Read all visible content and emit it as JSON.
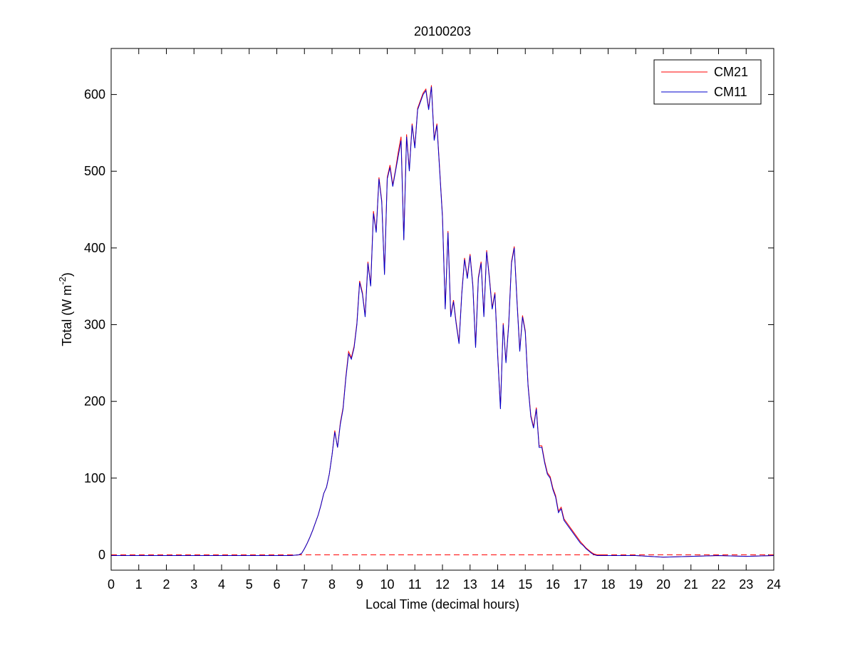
{
  "chart_data": {
    "type": "line",
    "title": "20100203",
    "xlabel": "Local Time (decimal hours)",
    "ylabel_parts": [
      "Total (W m",
      "-2",
      ")"
    ],
    "x": [
      0,
      1,
      2,
      3,
      4,
      5,
      6,
      6.5,
      6.8,
      6.9,
      7.0,
      7.1,
      7.2,
      7.3,
      7.4,
      7.5,
      7.6,
      7.7,
      7.8,
      7.9,
      8.0,
      8.1,
      8.2,
      8.3,
      8.4,
      8.5,
      8.6,
      8.7,
      8.8,
      8.9,
      9.0,
      9.1,
      9.2,
      9.3,
      9.4,
      9.5,
      9.6,
      9.7,
      9.8,
      9.9,
      10.0,
      10.1,
      10.2,
      10.3,
      10.4,
      10.5,
      10.6,
      10.7,
      10.8,
      10.9,
      11.0,
      11.1,
      11.2,
      11.3,
      11.4,
      11.5,
      11.6,
      11.7,
      11.8,
      11.9,
      12.0,
      12.1,
      12.2,
      12.3,
      12.4,
      12.5,
      12.6,
      12.7,
      12.8,
      12.9,
      13.0,
      13.1,
      13.2,
      13.3,
      13.4,
      13.5,
      13.6,
      13.7,
      13.8,
      13.9,
      14.0,
      14.1,
      14.2,
      14.3,
      14.4,
      14.5,
      14.6,
      14.7,
      14.8,
      14.9,
      15.0,
      15.1,
      15.2,
      15.3,
      15.4,
      15.5,
      15.6,
      15.7,
      15.8,
      15.9,
      16.0,
      16.1,
      16.2,
      16.3,
      16.4,
      16.5,
      16.6,
      16.7,
      16.8,
      16.9,
      17.0,
      17.1,
      17.2,
      17.3,
      17.4,
      17.5,
      17.6,
      17.7,
      17.8,
      18,
      19,
      20,
      21,
      22,
      23,
      24
    ],
    "series": [
      {
        "name": "CM21",
        "color": "#ff0000",
        "values": [
          -1,
          -1,
          -1,
          -1,
          -1,
          -1,
          -1,
          -1,
          0,
          2,
          8,
          15,
          23,
          32,
          42,
          52,
          65,
          80,
          88,
          105,
          130,
          162,
          140,
          172,
          192,
          232,
          265,
          257,
          272,
          302,
          357,
          342,
          312,
          382,
          352,
          448,
          422,
          492,
          462,
          367,
          492,
          508,
          482,
          502,
          525,
          545,
          412,
          548,
          502,
          562,
          532,
          582,
          592,
          602,
          607,
          582,
          612,
          542,
          562,
          502,
          442,
          322,
          422,
          312,
          332,
          302,
          277,
          342,
          387,
          362,
          392,
          352,
          272,
          362,
          382,
          312,
          397,
          362,
          322,
          342,
          262,
          192,
          302,
          252,
          302,
          382,
          402,
          332,
          267,
          312,
          292,
          222,
          182,
          167,
          192,
          142,
          142,
          122,
          107,
          102,
          87,
          77,
          57,
          62,
          47,
          42,
          37,
          32,
          27,
          22,
          17,
          13,
          9,
          6,
          3,
          1,
          0,
          0,
          0,
          -1,
          -1,
          -3,
          -2,
          -1,
          -2,
          -1
        ]
      },
      {
        "name": "CM11",
        "color": "#0000cc",
        "values": [
          -1,
          -1,
          -1,
          -1,
          -1,
          -1,
          -1,
          -1,
          0,
          2,
          8,
          15,
          23,
          32,
          42,
          52,
          65,
          80,
          88,
          105,
          130,
          160,
          140,
          170,
          190,
          230,
          262,
          255,
          270,
          300,
          355,
          340,
          310,
          380,
          350,
          445,
          420,
          490,
          460,
          365,
          490,
          505,
          480,
          500,
          520,
          540,
          410,
          545,
          500,
          560,
          530,
          580,
          590,
          600,
          605,
          580,
          610,
          540,
          560,
          500,
          440,
          320,
          420,
          310,
          330,
          300,
          275,
          340,
          385,
          360,
          390,
          350,
          270,
          360,
          380,
          310,
          395,
          360,
          320,
          340,
          260,
          190,
          300,
          250,
          300,
          380,
          400,
          330,
          265,
          310,
          290,
          220,
          180,
          165,
          190,
          140,
          140,
          120,
          105,
          100,
          85,
          75,
          55,
          60,
          45,
          40,
          35,
          30,
          25,
          20,
          15,
          12,
          8,
          5,
          2,
          0,
          -1,
          -1,
          -1,
          -1,
          -1,
          -3,
          -2,
          -1,
          -2,
          -1
        ]
      }
    ],
    "reference_line": {
      "y": 0,
      "color": "#ff0000",
      "style": "dashed"
    },
    "xlim": [
      0,
      24
    ],
    "xticks": [
      0,
      1,
      2,
      3,
      4,
      5,
      6,
      7,
      8,
      9,
      10,
      11,
      12,
      13,
      14,
      15,
      16,
      17,
      18,
      19,
      20,
      21,
      22,
      23,
      24
    ],
    "ylim": [
      -20,
      660
    ],
    "yticks": [
      0,
      100,
      200,
      300,
      400,
      500,
      600
    ],
    "legend": "top-right",
    "grid": false
  }
}
